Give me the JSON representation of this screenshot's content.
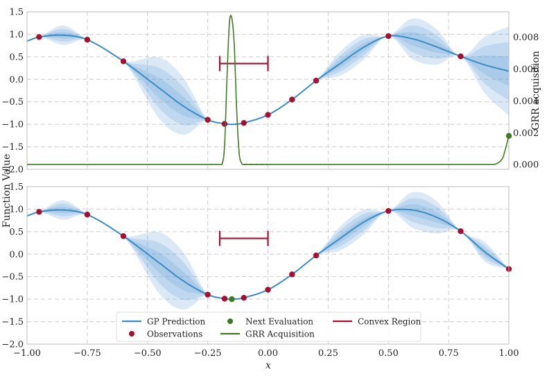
{
  "chart_data": [
    {
      "type": "line",
      "panel": "top",
      "xlim": [
        -1.0,
        1.0
      ],
      "ylim": [
        -2.0,
        1.5
      ],
      "y2lim": [
        -0.0003,
        0.0096
      ],
      "xticks": [
        "−1.00",
        "−0.75",
        "−0.50",
        "−0.25",
        "0.00",
        "0.25",
        "0.50",
        "0.75",
        "1.00"
      ],
      "yticks": [
        "1.5",
        "1.0",
        "0.5",
        "0.0",
        "−0.5",
        "−1.0",
        "−1.5",
        "−2.0"
      ],
      "y2ticks": [
        "0.008",
        "0.006",
        "0.004",
        "0.002",
        "0.000"
      ],
      "ylabel2": "GRR acquisition",
      "grid": true,
      "observations": {
        "x": [
          -0.95,
          -0.75,
          -0.6,
          -0.25,
          -0.18,
          -0.1,
          0.0,
          0.1,
          0.2,
          0.5,
          0.8
        ],
        "y": [
          0.94,
          0.88,
          0.4,
          -0.9,
          -0.99,
          -0.97,
          -0.79,
          -0.45,
          -0.03,
          0.96,
          0.51
        ]
      },
      "gp_prediction": {
        "x": [
          -1.0,
          -0.95,
          -0.85,
          -0.75,
          -0.6,
          -0.45,
          -0.35,
          -0.25,
          -0.18,
          -0.14,
          -0.1,
          0.0,
          0.1,
          0.2,
          0.3,
          0.4,
          0.5,
          0.6,
          0.7,
          0.8,
          0.9,
          1.0
        ],
        "y": [
          0.85,
          0.94,
          0.98,
          0.88,
          0.4,
          -0.2,
          -0.6,
          -0.9,
          -0.99,
          -1.0,
          -0.97,
          -0.79,
          -0.45,
          -0.03,
          0.35,
          0.72,
          0.96,
          0.9,
          0.72,
          0.51,
          0.32,
          0.18
        ]
      },
      "gp_std": [
        0.0,
        0.0,
        0.12,
        0.0,
        0.0,
        0.38,
        0.35,
        0.0,
        0.0,
        0.01,
        0.0,
        0.0,
        0.0,
        0.0,
        0.15,
        0.15,
        0.0,
        0.25,
        0.22,
        0.0,
        0.35,
        0.55
      ],
      "grr_acquisition": {
        "x": [
          -1.0,
          -0.2,
          -0.19,
          -0.18,
          -0.17,
          -0.16,
          -0.15,
          -0.14,
          -0.13,
          -0.12,
          -0.11,
          -0.1,
          0.0,
          0.9,
          0.97,
          1.0
        ],
        "y": [
          0.0,
          0.0,
          5e-05,
          0.0012,
          0.0055,
          0.0089,
          0.0092,
          0.0075,
          0.0035,
          0.0008,
          0.0001,
          0.0,
          0.0,
          0.0,
          0.0003,
          0.0018
        ]
      },
      "acq_dashed_range": [
        -0.1,
        0.0
      ],
      "next_evaluation": {
        "x": 1.0,
        "y": 0.0018
      },
      "convex_region": {
        "x": [
          -0.2,
          0.0
        ],
        "y": 0.35
      }
    },
    {
      "type": "line",
      "panel": "bottom",
      "xlim": [
        -1.0,
        1.0
      ],
      "ylim": [
        -2.0,
        1.5
      ],
      "xticks": [
        "−1.00",
        "−0.75",
        "−0.50",
        "−0.25",
        "0.00",
        "0.25",
        "0.50",
        "0.75",
        "1.00"
      ],
      "yticks": [
        "1.5",
        "1.0",
        "0.5",
        "0.0",
        "−0.5",
        "−1.0",
        "−1.5",
        "−2.0"
      ],
      "grid": true,
      "observations": {
        "x": [
          -0.95,
          -0.75,
          -0.6,
          -0.25,
          -0.18,
          -0.1,
          0.0,
          0.1,
          0.2,
          0.5,
          0.8,
          1.0
        ],
        "y": [
          0.94,
          0.88,
          0.4,
          -0.9,
          -0.99,
          -0.97,
          -0.79,
          -0.45,
          -0.03,
          0.96,
          0.51,
          -0.33
        ]
      },
      "gp_prediction": {
        "x": [
          -1.0,
          -0.95,
          -0.85,
          -0.75,
          -0.6,
          -0.45,
          -0.35,
          -0.25,
          -0.18,
          -0.14,
          -0.1,
          0.0,
          0.1,
          0.2,
          0.3,
          0.4,
          0.5,
          0.6,
          0.7,
          0.8,
          0.9,
          1.0
        ],
        "y": [
          0.85,
          0.94,
          0.98,
          0.88,
          0.4,
          -0.2,
          -0.6,
          -0.9,
          -0.99,
          -1.0,
          -0.97,
          -0.79,
          -0.45,
          -0.03,
          0.35,
          0.72,
          0.96,
          0.98,
          0.82,
          0.51,
          0.05,
          -0.33
        ]
      },
      "gp_std": [
        0.0,
        0.0,
        0.12,
        0.0,
        0.0,
        0.38,
        0.35,
        0.0,
        0.0,
        0.01,
        0.0,
        0.0,
        0.0,
        0.0,
        0.15,
        0.15,
        0.0,
        0.22,
        0.2,
        0.0,
        0.12,
        0.0
      ],
      "next_evaluation": {
        "x": -0.15,
        "y": -1.0
      },
      "convex_region": {
        "x": [
          -0.2,
          0.0
        ],
        "y": 0.35
      }
    }
  ],
  "shared": {
    "ylabel": "Function Value",
    "xlabel": "x",
    "legend": {
      "items": [
        {
          "label": "GP Prediction",
          "kind": "line",
          "color": "#3a8cc2"
        },
        {
          "label": "Observations",
          "kind": "dot",
          "color": "#a50f31"
        },
        {
          "label": "Next Evaluation",
          "kind": "dot",
          "color": "#3d7a23"
        },
        {
          "label": "GRR Acquisition",
          "kind": "line",
          "color": "#3d7a23"
        },
        {
          "label": "Convex Region",
          "kind": "line",
          "color": "#a50f31"
        }
      ]
    },
    "colors": {
      "gp_line": "#3a8cc2",
      "band": "#5b9bd5",
      "observation": "#a50f31",
      "acquisition": "#3d7a23",
      "convex": "#a50f31",
      "grid": "#cccccc"
    }
  }
}
